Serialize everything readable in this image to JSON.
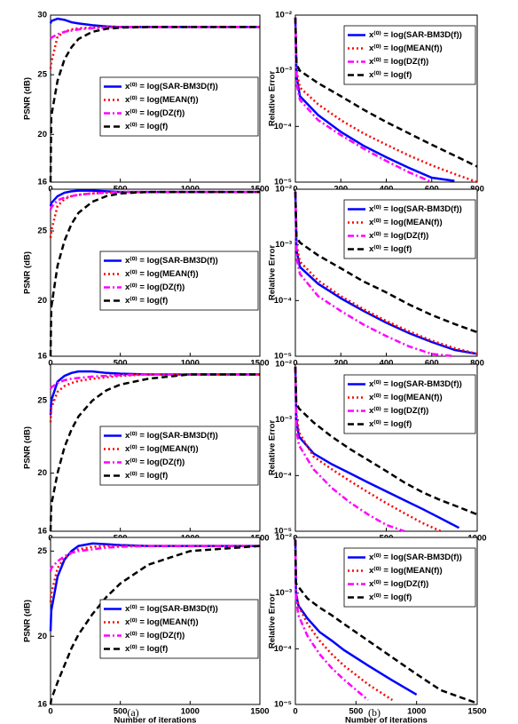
{
  "chart_data": [
    {
      "type": "line",
      "xlabel": "Number of iterations",
      "ylabel": "PSNR (dB)",
      "xlim": [
        0,
        1500
      ],
      "ylim": [
        16,
        30
      ],
      "xticks": [
        0,
        500,
        1000,
        1500
      ],
      "yticks": [
        16,
        20,
        25,
        30
      ],
      "yscale": "linear",
      "legend": "lower right",
      "x": [
        0,
        5,
        50,
        100,
        150,
        200,
        300,
        400,
        500,
        700,
        1000,
        1500
      ],
      "series": [
        {
          "name": "x⁽⁰⁾ = log(SAR-BM3D(f))",
          "color": "#0000ff",
          "dash": "solid",
          "values": [
            29.3,
            29.5,
            29.7,
            29.6,
            29.4,
            29.3,
            29.15,
            29.05,
            29.0,
            29,
            29,
            29
          ]
        },
        {
          "name": "x⁽⁰⁾ = log(MEAN(f))",
          "color": "#ff0000",
          "dash": "dotted",
          "values": [
            25.5,
            26,
            28.2,
            28.6,
            28.8,
            28.9,
            28.95,
            29,
            29,
            29,
            29,
            29
          ]
        },
        {
          "name": "x⁽⁰⁾ = log(DZ(f))",
          "color": "#ff00ff",
          "dash": "dashdot",
          "values": [
            28,
            28.1,
            28.4,
            28.6,
            28.7,
            28.8,
            28.9,
            28.95,
            29,
            29,
            29,
            29
          ]
        },
        {
          "name": "x⁽⁰⁾ = log(f)",
          "color": "#000000",
          "dash": "dashed",
          "values": [
            16,
            21.5,
            24.5,
            26.3,
            27.3,
            28,
            28.6,
            28.85,
            28.95,
            29,
            29,
            29
          ]
        }
      ]
    },
    {
      "type": "line",
      "xlabel": "Number of iterations",
      "ylabel": "Relative Error",
      "xlim": [
        0,
        800
      ],
      "ylim": [
        1e-05,
        0.01
      ],
      "xticks": [
        0,
        200,
        400,
        600,
        800
      ],
      "yticks": [
        {
          "value": 1e-05,
          "label": "10⁻⁵"
        },
        {
          "value": 0.0001,
          "label": "10⁻⁴"
        },
        {
          "value": 0.001,
          "label": "10⁻³"
        },
        {
          "value": 0.01,
          "label": "10⁻²"
        }
      ],
      "yscale": "log",
      "legend": "upper right",
      "x": [
        0,
        5,
        20,
        100,
        200,
        300,
        400,
        500,
        600,
        700,
        800
      ],
      "series": [
        {
          "name": "x⁽⁰⁾ = log(SAR-BM3D(f))",
          "color": "#0000ff",
          "dash": "solid",
          "values": [
            0.009,
            0.0008,
            0.00035,
            0.00016,
            8e-05,
            4.5e-05,
            2.8e-05,
            1.8e-05,
            1.2e-05,
            1.05e-05,
            null
          ]
        },
        {
          "name": "x⁽⁰⁾ = log(MEAN(f))",
          "color": "#ff0000",
          "dash": "dotted",
          "values": [
            0.009,
            0.001,
            0.0005,
            0.00025,
            0.00013,
            7.5e-05,
            4.7e-05,
            3e-05,
            2e-05,
            1.4e-05,
            1e-05
          ]
        },
        {
          "name": "x⁽⁰⁾ = log(DZ(f))",
          "color": "#ff00ff",
          "dash": "dashdot",
          "values": [
            0.009,
            0.0006,
            0.0003,
            0.00013,
            7e-05,
            4e-05,
            2.4e-05,
            1.5e-05,
            1e-05,
            null,
            null
          ]
        },
        {
          "name": "x⁽⁰⁾ = log(f)",
          "color": "#000000",
          "dash": "dashed",
          "values": [
            0.009,
            0.0013,
            0.001,
            0.0006,
            0.00035,
            0.0002,
            0.00012,
            7.5e-05,
            4.7e-05,
            3e-05,
            1.9e-05
          ]
        }
      ]
    },
    {
      "type": "line",
      "xlabel": "Number of iterations",
      "ylabel": "PSNR (dB)",
      "xlim": [
        0,
        1500
      ],
      "ylim": [
        16,
        28
      ],
      "xticks": [
        0,
        500,
        1000,
        1500
      ],
      "yticks": [
        16,
        20,
        25
      ],
      "yscale": "linear",
      "legend": "lower right",
      "x": [
        0,
        5,
        50,
        100,
        150,
        200,
        300,
        400,
        500,
        700,
        1000,
        1500
      ],
      "series": [
        {
          "name": "x⁽⁰⁾ = log(SAR-BM3D(f))",
          "color": "#0000ff",
          "dash": "solid",
          "values": [
            26.8,
            27,
            27.5,
            27.75,
            27.85,
            27.9,
            27.9,
            27.85,
            27.8,
            27.8,
            27.8,
            27.8
          ]
        },
        {
          "name": "x⁽⁰⁾ = log(MEAN(f))",
          "color": "#ff0000",
          "dash": "dotted",
          "values": [
            24.5,
            25,
            26.8,
            27.3,
            27.5,
            27.6,
            27.7,
            27.75,
            27.8,
            27.8,
            27.8,
            27.8
          ]
        },
        {
          "name": "x⁽⁰⁾ = log(DZ(f))",
          "color": "#ff00ff",
          "dash": "dashdot",
          "values": [
            26.5,
            26.7,
            27.2,
            27.4,
            27.5,
            27.6,
            27.7,
            27.75,
            27.8,
            27.8,
            27.8,
            27.8
          ]
        },
        {
          "name": "x⁽⁰⁾ = log(f)",
          "color": "#000000",
          "dash": "dashed",
          "values": [
            16,
            19.5,
            22.5,
            24.3,
            25.5,
            26.3,
            27.1,
            27.5,
            27.7,
            27.8,
            27.8,
            27.8
          ]
        }
      ]
    },
    {
      "type": "line",
      "xlabel": "Number of iterations",
      "ylabel": "Relative Error",
      "xlim": [
        0,
        800
      ],
      "ylim": [
        1e-05,
        0.01
      ],
      "xticks": [
        0,
        200,
        400,
        600,
        800
      ],
      "yticks": [
        {
          "value": 1e-05,
          "label": "10⁻⁵"
        },
        {
          "value": 0.0001,
          "label": "10⁻⁴"
        },
        {
          "value": 0.001,
          "label": "10⁻³"
        },
        {
          "value": 0.01,
          "label": "10⁻²"
        }
      ],
      "yscale": "log",
      "legend": "upper right",
      "x": [
        0,
        5,
        20,
        100,
        200,
        300,
        400,
        500,
        600,
        700,
        800
      ],
      "series": [
        {
          "name": "x⁽⁰⁾ = log(SAR-BM3D(f))",
          "color": "#0000ff",
          "dash": "solid",
          "values": [
            0.009,
            0.0008,
            0.0004,
            0.0002,
            0.00011,
            6.5e-05,
            4e-05,
            2.6e-05,
            1.8e-05,
            1.3e-05,
            1.1e-05
          ]
        },
        {
          "name": "x⁽⁰⁾ = log(MEAN(f))",
          "color": "#ff0000",
          "dash": "dotted",
          "values": [
            0.009,
            0.001,
            0.0005,
            0.00023,
            0.00012,
            7e-05,
            4.3e-05,
            2.8e-05,
            1.9e-05,
            1.4e-05,
            1.1e-05
          ]
        },
        {
          "name": "x⁽⁰⁾ = log(DZ(f))",
          "color": "#ff00ff",
          "dash": "dashdot",
          "values": [
            0.009,
            0.0006,
            0.0003,
            0.00012,
            6.5e-05,
            3.7e-05,
            2.3e-05,
            1.5e-05,
            1.1e-05,
            1e-05,
            null
          ]
        },
        {
          "name": "x⁽⁰⁾ = log(f)",
          "color": "#000000",
          "dash": "dashed",
          "values": [
            0.009,
            0.0014,
            0.0011,
            0.00065,
            0.00038,
            0.00022,
            0.00014,
            8.5e-05,
            5.5e-05,
            3.8e-05,
            2.7e-05
          ]
        }
      ]
    },
    {
      "type": "line",
      "xlabel": "Number of iterations",
      "ylabel": "PSNR (dB)",
      "xlim": [
        0,
        1500
      ],
      "ylim": [
        16,
        27.5
      ],
      "xticks": [
        0,
        500,
        1000,
        1500
      ],
      "yticks": [
        16,
        20,
        25
      ],
      "yscale": "linear",
      "legend": "lower right",
      "x": [
        0,
        5,
        50,
        100,
        150,
        200,
        300,
        400,
        500,
        700,
        1000,
        1500
      ],
      "series": [
        {
          "name": "x⁽⁰⁾ = log(SAR-BM3D(f))",
          "color": "#0000ff",
          "dash": "solid",
          "values": [
            24,
            25,
            26.3,
            26.7,
            26.9,
            27.0,
            27.0,
            26.9,
            26.85,
            26.8,
            26.8,
            26.8
          ]
        },
        {
          "name": "x⁽⁰⁾ = log(MEAN(f))",
          "color": "#ff0000",
          "dash": "dotted",
          "values": [
            23.5,
            24.5,
            25.6,
            26,
            26.2,
            26.35,
            26.5,
            26.6,
            26.7,
            26.8,
            26.8,
            26.8
          ]
        },
        {
          "name": "x⁽⁰⁾ = log(DZ(f))",
          "color": "#ff00ff",
          "dash": "dashdot",
          "values": [
            25.8,
            25.9,
            26.2,
            26.4,
            26.5,
            26.55,
            26.65,
            26.7,
            26.75,
            26.8,
            26.8,
            26.8
          ]
        },
        {
          "name": "x⁽⁰⁾ = log(f)",
          "color": "#000000",
          "dash": "dashed",
          "values": [
            16,
            17.8,
            20,
            21.8,
            23,
            23.9,
            25,
            25.7,
            26.1,
            26.5,
            26.8,
            26.8
          ]
        }
      ]
    },
    {
      "type": "line",
      "xlabel": "Number of iterations",
      "ylabel": "Relative Error",
      "xlim": [
        0,
        1000
      ],
      "ylim": [
        1e-05,
        0.01
      ],
      "xticks": [
        0,
        500,
        1000
      ],
      "yticks": [
        {
          "value": 1e-05,
          "label": "10⁻⁵"
        },
        {
          "value": 0.0001,
          "label": "10⁻⁴"
        },
        {
          "value": 0.001,
          "label": "10⁻³"
        },
        {
          "value": 0.01,
          "label": "10⁻²"
        }
      ],
      "yscale": "log",
      "legend": "upper right",
      "x": [
        0,
        5,
        20,
        100,
        200,
        300,
        400,
        500,
        600,
        700,
        800,
        900,
        1000
      ],
      "series": [
        {
          "name": "x⁽⁰⁾ = log(SAR-BM3D(f))",
          "color": "#0000ff",
          "dash": "solid",
          "values": [
            0.009,
            0.001,
            0.0005,
            0.00025,
            0.00016,
            0.00011,
            7.5e-05,
            5.2e-05,
            3.6e-05,
            2.5e-05,
            1.7e-05,
            1.15e-05,
            null
          ]
        },
        {
          "name": "x⁽⁰⁾ = log(MEAN(f))",
          "color": "#ff0000",
          "dash": "dotted",
          "values": [
            0.009,
            0.0013,
            0.0006,
            0.00022,
            0.00013,
            8e-05,
            5e-05,
            3.2e-05,
            2.1e-05,
            1.4e-05,
            1e-05,
            null,
            null
          ]
        },
        {
          "name": "x⁽⁰⁾ = log(DZ(f))",
          "color": "#ff00ff",
          "dash": "dashdot",
          "values": [
            0.009,
            0.0007,
            0.00035,
            0.00013,
            6e-05,
            3.3e-05,
            2e-05,
            1.3e-05,
            1e-05,
            null,
            null,
            null,
            null
          ]
        },
        {
          "name": "x⁽⁰⁾ = log(f)",
          "color": "#000000",
          "dash": "dashed",
          "values": [
            0.009,
            0.002,
            0.0016,
            0.0009,
            0.0005,
            0.0003,
            0.00019,
            0.00012,
            7.5e-05,
            5e-05,
            3.6e-05,
            2.7e-05,
            2e-05
          ]
        }
      ]
    },
    {
      "type": "line",
      "xlabel": "Number of iterations",
      "ylabel": "PSNR (dB)",
      "xlim": [
        0,
        1500
      ],
      "ylim": [
        16,
        25.8
      ],
      "xticks": [
        0,
        500,
        1000,
        1500
      ],
      "yticks": [
        16,
        20,
        25
      ],
      "yscale": "linear",
      "legend": "lower right",
      "x": [
        0,
        5,
        50,
        100,
        150,
        200,
        300,
        400,
        500,
        700,
        1000,
        1500
      ],
      "series": [
        {
          "name": "x⁽⁰⁾ = log(SAR-BM3D(f))",
          "color": "#0000ff",
          "dash": "solid",
          "values": [
            20.3,
            21.5,
            23.5,
            24.5,
            25,
            25.3,
            25.45,
            25.4,
            25.35,
            25.3,
            25.3,
            25.3
          ]
        },
        {
          "name": "x⁽⁰⁾ = log(MEAN(f))",
          "color": "#ff0000",
          "dash": "dotted",
          "values": [
            22,
            22.5,
            24,
            24.6,
            24.9,
            25.1,
            25.25,
            25.3,
            25.3,
            25.3,
            25.3,
            25.3
          ]
        },
        {
          "name": "x⁽⁰⁾ = log(DZ(f))",
          "color": "#ff00ff",
          "dash": "dashdot",
          "values": [
            23.8,
            24,
            24.4,
            24.7,
            24.9,
            25,
            25.1,
            25.2,
            25.25,
            25.3,
            25.3,
            25.3
          ]
        },
        {
          "name": "x⁽⁰⁾ = log(f)",
          "color": "#000000",
          "dash": "dashed",
          "values": [
            16,
            16.3,
            17.3,
            18.3,
            19.3,
            20.1,
            21.3,
            22.3,
            23.1,
            24.2,
            25,
            25.3
          ]
        }
      ]
    },
    {
      "type": "line",
      "xlabel": "Number of iterations",
      "ylabel": "Relative Error",
      "xlim": [
        0,
        1500
      ],
      "ylim": [
        1e-05,
        0.01
      ],
      "xticks": [
        0,
        500,
        1000,
        1500
      ],
      "yticks": [
        {
          "value": 1e-05,
          "label": "10⁻⁵"
        },
        {
          "value": 0.0001,
          "label": "10⁻⁴"
        },
        {
          "value": 0.001,
          "label": "10⁻³"
        },
        {
          "value": 0.01,
          "label": "10⁻²"
        }
      ],
      "yscale": "log",
      "legend": "upper right",
      "x": [
        0,
        5,
        25,
        100,
        200,
        300,
        400,
        600,
        800,
        1000,
        1200,
        1500
      ],
      "series": [
        {
          "name": "x⁽⁰⁾ = log(SAR-BM3D(f))",
          "color": "#0000ff",
          "dash": "solid",
          "values": [
            0.009,
            0.001,
            0.0006,
            0.00035,
            0.0002,
            0.00014,
            9.5e-05,
            5e-05,
            2.7e-05,
            1.5e-05,
            null,
            null
          ]
        },
        {
          "name": "x⁽⁰⁾ = log(MEAN(f))",
          "color": "#ff0000",
          "dash": "dotted",
          "values": [
            0.009,
            0.001,
            0.0006,
            0.00028,
            0.00014,
            8e-05,
            5e-05,
            2.3e-05,
            1.2e-05,
            null,
            null,
            null
          ]
        },
        {
          "name": "x⁽⁰⁾ = log(DZ(f))",
          "color": "#ff00ff",
          "dash": "dashdot",
          "values": [
            0.009,
            0.0008,
            0.0004,
            0.00017,
            8e-05,
            4.5e-05,
            2.8e-05,
            1.2e-05,
            null,
            null,
            null,
            null
          ]
        },
        {
          "name": "x⁽⁰⁾ = log(f)",
          "color": "#000000",
          "dash": "dashed",
          "values": [
            0.009,
            0.0015,
            0.0013,
            0.0008,
            0.00055,
            0.0004,
            0.00028,
            0.00014,
            7e-05,
            3.5e-05,
            1.8e-05,
            1.05e-05
          ]
        }
      ]
    }
  ],
  "captions": [
    "(a)",
    "(b)"
  ]
}
